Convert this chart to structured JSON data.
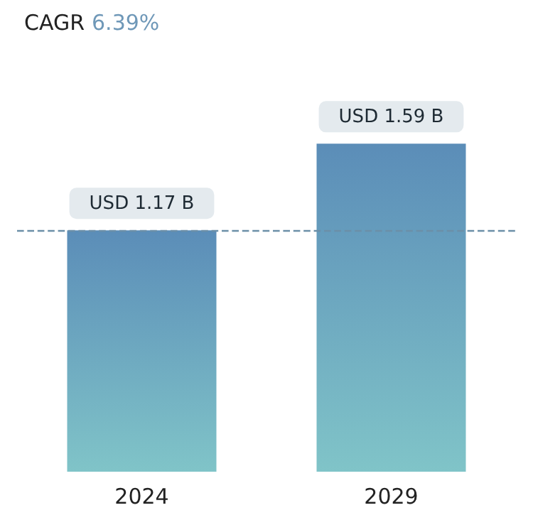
{
  "chart_data": {
    "type": "bar",
    "title": "CAGR 6.39%",
    "categories": [
      "2024",
      "2029"
    ],
    "values": [
      1.17,
      1.59
    ],
    "value_labels": [
      "USD 1.17 B",
      "USD 1.59 B"
    ],
    "color": "#5b8db8",
    "ref_lines": [
      {
        "axis": "y",
        "value": 1.17,
        "color": "#6b8fa8",
        "line_style": "dashed"
      }
    ]
  }
}
